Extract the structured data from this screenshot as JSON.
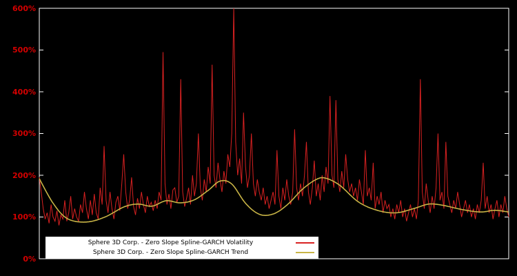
{
  "chart": {
    "background": "#000000",
    "border_color": "#ffffff",
    "tick_label_color": "#d40000",
    "legend_background": "#ffffff"
  },
  "chart_data": {
    "type": "line",
    "title": "",
    "xlabel": "",
    "ylabel": "",
    "ylim": [
      0,
      600
    ],
    "ytick_values": [
      0,
      100,
      200,
      300,
      400,
      500,
      600
    ],
    "ytick_labels": [
      "0%",
      "100%",
      "200%",
      "300%",
      "400%",
      "500%",
      "600%"
    ],
    "grid": false,
    "legend_position": "bottom-left",
    "series": [
      {
        "name": "Sphere 3D Corp. - Zero Slope Spline-GARCH Volatility",
        "color": "#d92121",
        "style": "spiky",
        "values": [
          195,
          160,
          120,
          95,
          110,
          85,
          130,
          100,
          90,
          115,
          80,
          105,
          95,
          140,
          90,
          110,
          150,
          95,
          120,
          100,
          90,
          130,
          110,
          160,
          120,
          95,
          140,
          105,
          155,
          110,
          95,
          170,
          130,
          270,
          140,
          110,
          160,
          120,
          95,
          135,
          150,
          115,
          180,
          250,
          160,
          120,
          140,
          195,
          125,
          105,
          145,
          120,
          160,
          130,
          110,
          150,
          125,
          135,
          115,
          140,
          120,
          160,
          140,
          495,
          180,
          130,
          155,
          120,
          165,
          170,
          135,
          150,
          430,
          160,
          125,
          145,
          170,
          130,
          200,
          150,
          180,
          300,
          170,
          140,
          190,
          160,
          220,
          180,
          465,
          200,
          170,
          230,
          190,
          160,
          210,
          180,
          250,
          220,
          300,
          600,
          280,
          200,
          240,
          180,
          350,
          220,
          170,
          200,
          300,
          180,
          150,
          190,
          160,
          140,
          170,
          130,
          150,
          120,
          140,
          160,
          130,
          260,
          150,
          120,
          170,
          140,
          190,
          150,
          130,
          160,
          310,
          170,
          140,
          180,
          150,
          200,
          280,
          160,
          130,
          170,
          235,
          150,
          180,
          140,
          200,
          160,
          220,
          180,
          390,
          200,
          170,
          380,
          190,
          160,
          210,
          170,
          250,
          190,
          160,
          180,
          150,
          170,
          140,
          190,
          160,
          130,
          260,
          150,
          170,
          140,
          230,
          120,
          150,
          130,
          160,
          110,
          140,
          120,
          130,
          100,
          120,
          95,
          130,
          110,
          140,
          100,
          120,
          90,
          110,
          130,
          100,
          120,
          95,
          140,
          430,
          160,
          120,
          180,
          140,
          110,
          150,
          120,
          170,
          300,
          140,
          160,
          120,
          280,
          150,
          130,
          110,
          140,
          120,
          160,
          130,
          100,
          120,
          140,
          110,
          130,
          100,
          120,
          95,
          130,
          110,
          140,
          230,
          120,
          150,
          110,
          130,
          95,
          120,
          140,
          100,
          130,
          110,
          150,
          120,
          100
        ]
      },
      {
        "name": "Sphere 3D Corp. - Zero Slope Spline-GARCH Trend",
        "color": "#c8b446",
        "style": "smooth",
        "points": [
          [
            0,
            192
          ],
          [
            0.03,
            132
          ],
          [
            0.06,
            96
          ],
          [
            0.1,
            88
          ],
          [
            0.14,
            100
          ],
          [
            0.18,
            124
          ],
          [
            0.21,
            131
          ],
          [
            0.24,
            126
          ],
          [
            0.27,
            139
          ],
          [
            0.3,
            134
          ],
          [
            0.33,
            141
          ],
          [
            0.36,
            164
          ],
          [
            0.385,
            186
          ],
          [
            0.41,
            179
          ],
          [
            0.44,
            132
          ],
          [
            0.47,
            106
          ],
          [
            0.5,
            108
          ],
          [
            0.53,
            131
          ],
          [
            0.56,
            166
          ],
          [
            0.59,
            190
          ],
          [
            0.61,
            193
          ],
          [
            0.64,
            176
          ],
          [
            0.68,
            136
          ],
          [
            0.72,
            116
          ],
          [
            0.76,
            110
          ],
          [
            0.8,
            121
          ],
          [
            0.83,
            131
          ],
          [
            0.86,
            128
          ],
          [
            0.9,
            118
          ],
          [
            0.94,
            112
          ],
          [
            0.97,
            116
          ],
          [
            1,
            112
          ]
        ]
      }
    ]
  }
}
